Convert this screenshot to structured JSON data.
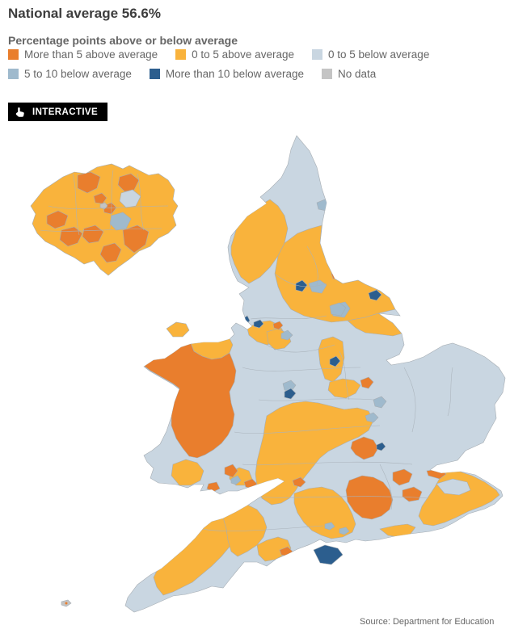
{
  "header": {
    "title": "National average 56.6%",
    "subtitle": "Percentage points above or below average"
  },
  "badge": {
    "label": "INTERACTIVE",
    "icon": "hand-pointer-icon"
  },
  "source": "Source: Department for Education",
  "palette": {
    "more_5_above": "#E97E2D",
    "0_5_above": "#F9B33C",
    "0_5_below": "#C9D6E1",
    "5_10_below": "#9FBACD",
    "more_10_below": "#2C5E8E",
    "no_data": "#C4C4C4"
  },
  "legend": {
    "rows": [
      [
        {
          "key": "more_5_above",
          "label": "More than 5 above average"
        },
        {
          "key": "0_5_above",
          "label": "0 to 5 above average"
        },
        {
          "key": "0_5_below",
          "label": "0 to 5 below average"
        }
      ],
      [
        {
          "key": "5_10_below",
          "label": "5 to 10 below average"
        },
        {
          "key": "more_10_below",
          "label": "More than 10 below average"
        },
        {
          "key": "no_data",
          "label": "No data"
        }
      ]
    ]
  },
  "map": {
    "regions": {
      "england-wales-base": "0_5_below",
      "anglesey": "0_5_above",
      "cumbria": "0_5_above",
      "north-yorkshire": "0_5_above",
      "east-riding": "0_5_above",
      "lancashire": "0_5_above",
      "greater-manchester": "0_5_above",
      "nottinghamshire": "0_5_above",
      "leicestershire": "0_5_above",
      "midlands-belt": "0_5_above",
      "devon": "0_5_above",
      "somerset": "0_5_above",
      "dorset": "0_5_above",
      "hampshire": "0_5_above",
      "kent": "0_5_above",
      "kent-east": "0_5_below",
      "brighton-coast": "0_5_above",
      "north-wales-coast": "0_5_above",
      "carmarthenshire": "0_5_above",
      "south-wales-yellow": "0_5_above",
      "mid-wales": "more_5_above",
      "cardiff": "more_5_above",
      "swansea": "more_5_above",
      "valleys-orange": "more_5_above",
      "surrey-cluster": "more_5_above",
      "west-london-fringe": "more_5_above",
      "berkshire-cluster": "more_5_above",
      "beds-bucks-cluster": "more_5_above",
      "medway": "more_5_above",
      "rutland": "more_5_above",
      "redcar-spot": "more_5_above",
      "trafford": "more_5_above",
      "swindon": "more_5_above",
      "bristol": "more_5_above",
      "bournemouth": "more_5_above",
      "newcastle-area": "5_10_below",
      "tees-band": "5_10_below",
      "leeds-area": "5_10_below",
      "south-yorkshire": "5_10_below",
      "peterborough": "5_10_below",
      "bedford": "5_10_below",
      "portsmouth-coast-a": "5_10_below",
      "portsmouth-coast-b": "5_10_below",
      "vale-of-glamorgan": "5_10_below",
      "manchester-city": "5_10_below",
      "stoke-surround": "5_10_below",
      "darlington": "more_10_below",
      "hull": "more_10_below",
      "blackpool": "more_10_below",
      "blackburn": "more_10_below",
      "stoke": "more_10_below",
      "nottingham": "more_10_below",
      "luton": "more_10_below",
      "isle-of-wight": "more_10_below",
      "isles-of-scilly": "no_data",
      "scilly-dot": "more_5_above",
      "inset-base": "0_5_above",
      "inset-barnet": "more_5_above",
      "inset-waltham": "more_5_above",
      "inset-hounslow": "more_5_above",
      "inset-richmond": "more_5_above",
      "inset-merton": "more_5_above",
      "inset-croydon": "more_5_above",
      "inset-bromley": "more_5_above",
      "inset-camden": "more_5_above",
      "inset-islington": "more_5_above",
      "inset-redbridge": "0_5_below",
      "inset-greenwich": "5_10_below",
      "inset-city": "no_data"
    }
  }
}
